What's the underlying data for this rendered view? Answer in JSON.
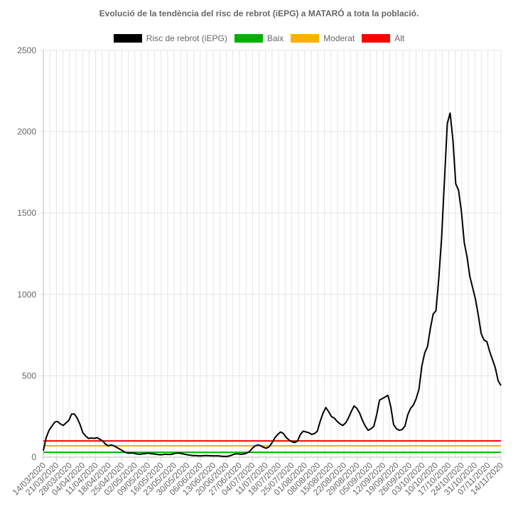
{
  "chart_data": {
    "type": "line",
    "title": "Evolució de la tendència del risc de rebrot (iEPG) a MATARÓ a tota la població.",
    "ylim": [
      0,
      2500
    ],
    "yticks": [
      0,
      500,
      1000,
      1500,
      2000,
      2500
    ],
    "grid": true,
    "legend_position": "top",
    "x_labels": [
      "14/03/2020",
      "21/03/2020",
      "28/03/2020",
      "04/04/2020",
      "11/04/2020",
      "18/04/2020",
      "25/04/2020",
      "02/05/2020",
      "09/05/2020",
      "16/05/2020",
      "23/05/2020",
      "30/05/2020",
      "06/06/2020",
      "13/06/2020",
      "20/06/2020",
      "27/06/2020",
      "04/07/2020",
      "11/07/2020",
      "18/07/2020",
      "25/07/2020",
      "01/08/2020",
      "08/08/2020",
      "15/08/2020",
      "22/08/2020",
      "29/08/2020",
      "05/09/2020",
      "12/09/2020",
      "19/09/2020",
      "26/09/2020",
      "03/10/2020",
      "10/10/2020",
      "17/10/2020",
      "24/10/2020",
      "31/10/2020",
      "07/11/2020",
      "14/11/2020"
    ],
    "series": [
      {
        "name": "Risc de rebrot (iEPG)",
        "color": "#000000",
        "points": [
          [
            0,
            40
          ],
          [
            1,
            120
          ],
          [
            2,
            165
          ],
          [
            3,
            190
          ],
          [
            4,
            215
          ],
          [
            5,
            220
          ],
          [
            6,
            205
          ],
          [
            7,
            195
          ],
          [
            8,
            210
          ],
          [
            9,
            225
          ],
          [
            10,
            265
          ],
          [
            11,
            265
          ],
          [
            12,
            240
          ],
          [
            13,
            200
          ],
          [
            14,
            150
          ],
          [
            15,
            130
          ],
          [
            16,
            115
          ],
          [
            17,
            118
          ],
          [
            18,
            115
          ],
          [
            19,
            120
          ],
          [
            20,
            110
          ],
          [
            21,
            100
          ],
          [
            22,
            80
          ],
          [
            23,
            70
          ],
          [
            24,
            75
          ],
          [
            25,
            70
          ],
          [
            26,
            60
          ],
          [
            27,
            50
          ],
          [
            28,
            40
          ],
          [
            29,
            30
          ],
          [
            30,
            25
          ],
          [
            31,
            25
          ],
          [
            32,
            25
          ],
          [
            33,
            20
          ],
          [
            34,
            18
          ],
          [
            35,
            20
          ],
          [
            36,
            22
          ],
          [
            37,
            25
          ],
          [
            38,
            22
          ],
          [
            39,
            20
          ],
          [
            40,
            18
          ],
          [
            41,
            15
          ],
          [
            42,
            15
          ],
          [
            43,
            18
          ],
          [
            44,
            17
          ],
          [
            45,
            17
          ],
          [
            46,
            20
          ],
          [
            47,
            25
          ],
          [
            48,
            25
          ],
          [
            49,
            22
          ],
          [
            50,
            18
          ],
          [
            51,
            15
          ],
          [
            52,
            12
          ],
          [
            53,
            10
          ],
          [
            54,
            10
          ],
          [
            55,
            8
          ],
          [
            56,
            8
          ],
          [
            57,
            10
          ],
          [
            58,
            10
          ],
          [
            59,
            9
          ],
          [
            60,
            8
          ],
          [
            61,
            8
          ],
          [
            62,
            8
          ],
          [
            63,
            6
          ],
          [
            64,
            5
          ],
          [
            65,
            5
          ],
          [
            66,
            8
          ],
          [
            67,
            15
          ],
          [
            68,
            20
          ],
          [
            69,
            20
          ],
          [
            70,
            18
          ],
          [
            71,
            20
          ],
          [
            72,
            25
          ],
          [
            73,
            35
          ],
          [
            74,
            55
          ],
          [
            75,
            70
          ],
          [
            76,
            75
          ],
          [
            77,
            70
          ],
          [
            78,
            60
          ],
          [
            79,
            55
          ],
          [
            80,
            65
          ],
          [
            81,
            90
          ],
          [
            82,
            120
          ],
          [
            83,
            140
          ],
          [
            84,
            155
          ],
          [
            85,
            145
          ],
          [
            86,
            120
          ],
          [
            87,
            105
          ],
          [
            88,
            95
          ],
          [
            89,
            90
          ],
          [
            90,
            100
          ],
          [
            91,
            140
          ],
          [
            92,
            160
          ],
          [
            93,
            155
          ],
          [
            94,
            150
          ],
          [
            95,
            140
          ],
          [
            96,
            145
          ],
          [
            97,
            160
          ],
          [
            98,
            220
          ],
          [
            99,
            270
          ],
          [
            100,
            305
          ],
          [
            101,
            280
          ],
          [
            102,
            250
          ],
          [
            103,
            240
          ],
          [
            104,
            220
          ],
          [
            105,
            205
          ],
          [
            106,
            195
          ],
          [
            107,
            210
          ],
          [
            108,
            240
          ],
          [
            109,
            280
          ],
          [
            110,
            315
          ],
          [
            111,
            300
          ],
          [
            112,
            270
          ],
          [
            113,
            225
          ],
          [
            114,
            190
          ],
          [
            115,
            165
          ],
          [
            116,
            175
          ],
          [
            117,
            190
          ],
          [
            118,
            260
          ],
          [
            119,
            350
          ],
          [
            120,
            360
          ],
          [
            121,
            370
          ],
          [
            122,
            380
          ],
          [
            123,
            310
          ],
          [
            124,
            200
          ],
          [
            125,
            175
          ],
          [
            126,
            165
          ],
          [
            127,
            170
          ],
          [
            128,
            190
          ],
          [
            129,
            260
          ],
          [
            130,
            300
          ],
          [
            131,
            320
          ],
          [
            132,
            360
          ],
          [
            133,
            420
          ],
          [
            134,
            560
          ],
          [
            135,
            640
          ],
          [
            136,
            680
          ],
          [
            137,
            790
          ],
          [
            138,
            880
          ],
          [
            139,
            900
          ],
          [
            140,
            1100
          ],
          [
            141,
            1350
          ],
          [
            142,
            1700
          ],
          [
            143,
            2050
          ],
          [
            144,
            2115
          ],
          [
            145,
            1950
          ],
          [
            146,
            1680
          ],
          [
            147,
            1640
          ],
          [
            148,
            1510
          ],
          [
            149,
            1320
          ],
          [
            150,
            1230
          ],
          [
            151,
            1110
          ],
          [
            152,
            1040
          ],
          [
            153,
            970
          ],
          [
            154,
            870
          ],
          [
            155,
            760
          ],
          [
            156,
            720
          ],
          [
            157,
            710
          ],
          [
            158,
            650
          ],
          [
            159,
            600
          ],
          [
            160,
            550
          ],
          [
            161,
            470
          ],
          [
            162,
            440
          ]
        ]
      },
      {
        "name": "Baix",
        "color": "#00b000",
        "points": [
          [
            0,
            30
          ],
          [
            162,
            30
          ]
        ]
      },
      {
        "name": "Moderat",
        "color": "#ffb000",
        "points": [
          [
            0,
            70
          ],
          [
            162,
            70
          ]
        ]
      },
      {
        "name": "Alt",
        "color": "#ff0000",
        "points": [
          [
            0,
            100
          ],
          [
            162,
            100
          ]
        ]
      }
    ]
  }
}
